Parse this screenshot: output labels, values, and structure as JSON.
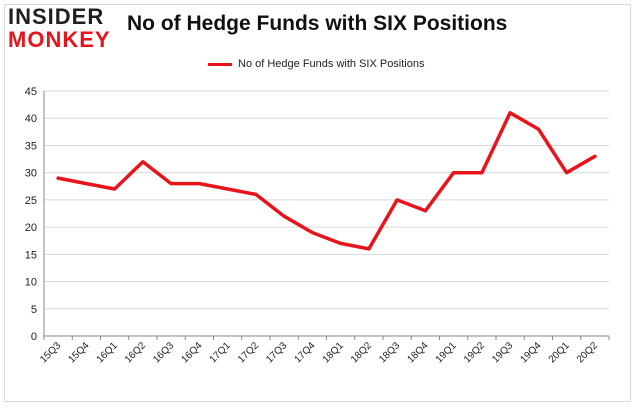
{
  "header": {
    "logo_top": "INSIDER",
    "logo_bottom": "MONKEY",
    "title": "No of Hedge Funds with SIX Positions"
  },
  "colors": {
    "line": "#e8141b",
    "grid": "#d9d9d9",
    "axis": "#888888"
  },
  "chart_data": {
    "type": "line",
    "title": "No of Hedge Funds with SIX Positions",
    "xlabel": "",
    "ylabel": "",
    "categories": [
      "15Q3",
      "15Q4",
      "16Q1",
      "16Q2",
      "16Q3",
      "16Q4",
      "17Q1",
      "17Q2",
      "17Q3",
      "17Q4",
      "18Q1",
      "18Q2",
      "18Q3",
      "18Q4",
      "19Q1",
      "19Q2",
      "19Q3",
      "19Q4",
      "20Q1",
      "20Q2"
    ],
    "series": [
      {
        "name": "No of Hedge Funds with SIX Positions",
        "values": [
          29,
          28,
          27,
          32,
          28,
          28,
          27,
          26,
          22,
          19,
          17,
          16,
          25,
          23,
          30,
          30,
          41,
          38,
          30,
          33
        ]
      }
    ],
    "ylim": [
      0,
      45
    ],
    "yticks": [
      0,
      5,
      10,
      15,
      20,
      25,
      30,
      35,
      40,
      45
    ],
    "grid": true,
    "legend_position": "top-center"
  }
}
